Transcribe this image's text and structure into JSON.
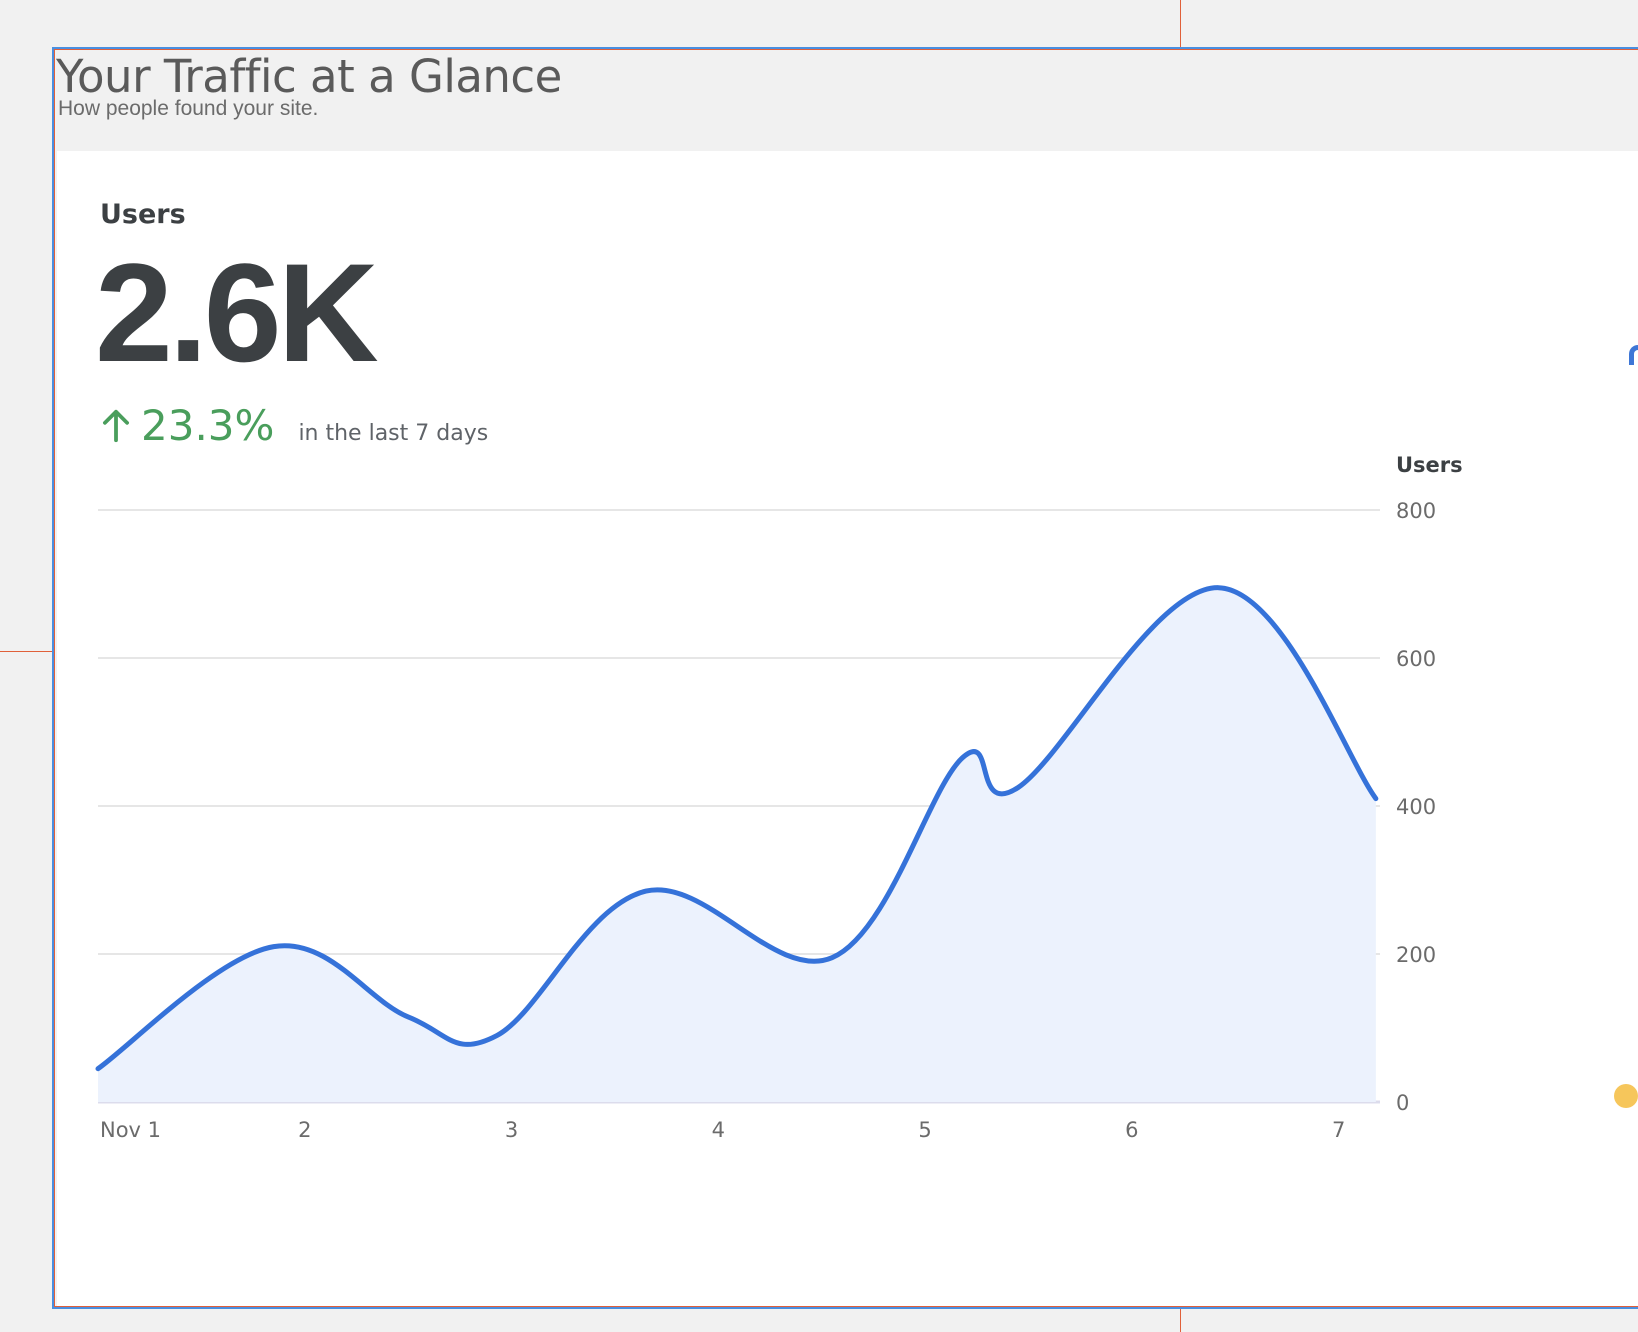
{
  "header": {
    "title": "Your Traffic at a Glance",
    "subtitle": "How people found your site."
  },
  "metric": {
    "label": "Users",
    "value": "2.6K",
    "delta": "23.3%",
    "period": "in the last 7 days"
  },
  "colors": {
    "line": "#3572d9",
    "area": "#ecf2fd",
    "positive": "#4a9e5c",
    "grid": "#e6e6e6"
  },
  "chart_data": {
    "type": "area",
    "ylabel": "Users",
    "ylim": [
      0,
      800
    ],
    "yticks": [
      0,
      200,
      400,
      600,
      800
    ],
    "xlim": [
      1,
      7.2
    ],
    "xticks": [
      {
        "x": 1,
        "label": "Nov 1"
      },
      {
        "x": 2,
        "label": "2"
      },
      {
        "x": 3,
        "label": "3"
      },
      {
        "x": 4,
        "label": "4"
      },
      {
        "x": 5,
        "label": "5"
      },
      {
        "x": 6,
        "label": "6"
      },
      {
        "x": 7,
        "label": "7"
      }
    ],
    "series": [
      {
        "points": [
          [
            1.0,
            45
          ],
          [
            1.85,
            210
          ],
          [
            2.5,
            115
          ],
          [
            2.93,
            90
          ],
          [
            3.65,
            285
          ],
          [
            4.55,
            195
          ],
          [
            5.18,
            465
          ],
          [
            5.45,
            425
          ],
          [
            6.42,
            695
          ],
          [
            7.18,
            410
          ]
        ]
      }
    ]
  }
}
